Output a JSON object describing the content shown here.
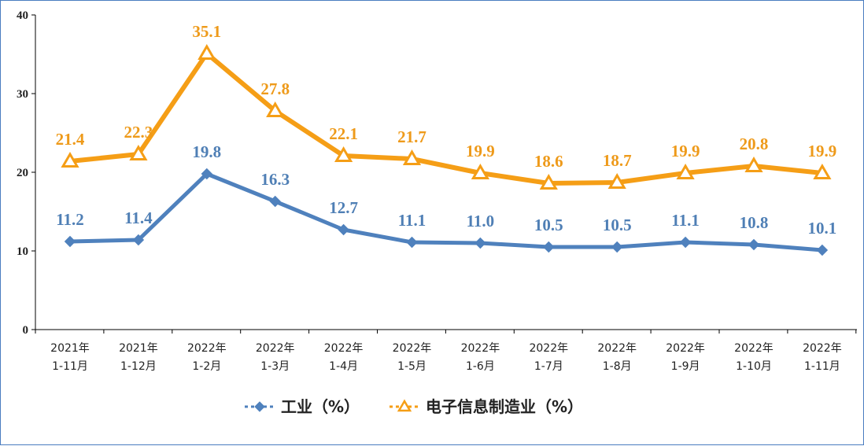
{
  "chart_data": {
    "type": "line",
    "categories": [
      [
        "2021年",
        "1-11月"
      ],
      [
        "2021年",
        "1-12月"
      ],
      [
        "2022年",
        "1-2月"
      ],
      [
        "2022年",
        "1-3月"
      ],
      [
        "2022年",
        "1-4月"
      ],
      [
        "2022年",
        "1-5月"
      ],
      [
        "2022年",
        "1-6月"
      ],
      [
        "2022年",
        "1-7月"
      ],
      [
        "2022年",
        "1-8月"
      ],
      [
        "2022年",
        "1-9月"
      ],
      [
        "2022年",
        "1-10月"
      ],
      [
        "2022年",
        "1-11月"
      ]
    ],
    "ylim": [
      0,
      40
    ],
    "yticks": [
      "0",
      "10",
      "20",
      "30",
      "40"
    ],
    "grid": false,
    "legend_position": "bottom",
    "series": [
      {
        "name": "工业（%）",
        "marker": "diamond",
        "color": "#4f81bd",
        "label_color": "#4f7fb5",
        "values": [
          11.2,
          11.4,
          19.8,
          16.3,
          12.7,
          11.1,
          11.0,
          10.5,
          10.5,
          11.1,
          10.8,
          10.1
        ],
        "labels": [
          "11.2",
          "11.4",
          "19.8",
          "16.3",
          "12.7",
          "11.1",
          "11.0",
          "10.5",
          "10.5",
          "11.1",
          "10.8",
          "10.1"
        ]
      },
      {
        "name": "电子信息制造业（%）",
        "marker": "triangle",
        "color": "#f59e16",
        "label_color": "#ee9a1a",
        "values": [
          21.4,
          22.3,
          35.1,
          27.8,
          22.1,
          21.7,
          19.9,
          18.6,
          18.7,
          19.9,
          20.8,
          19.9
        ],
        "labels": [
          "21.4",
          "22.3",
          "35.1",
          "27.8",
          "22.1",
          "21.7",
          "19.9",
          "18.6",
          "18.7",
          "19.9",
          "20.8",
          "19.9"
        ]
      }
    ]
  }
}
